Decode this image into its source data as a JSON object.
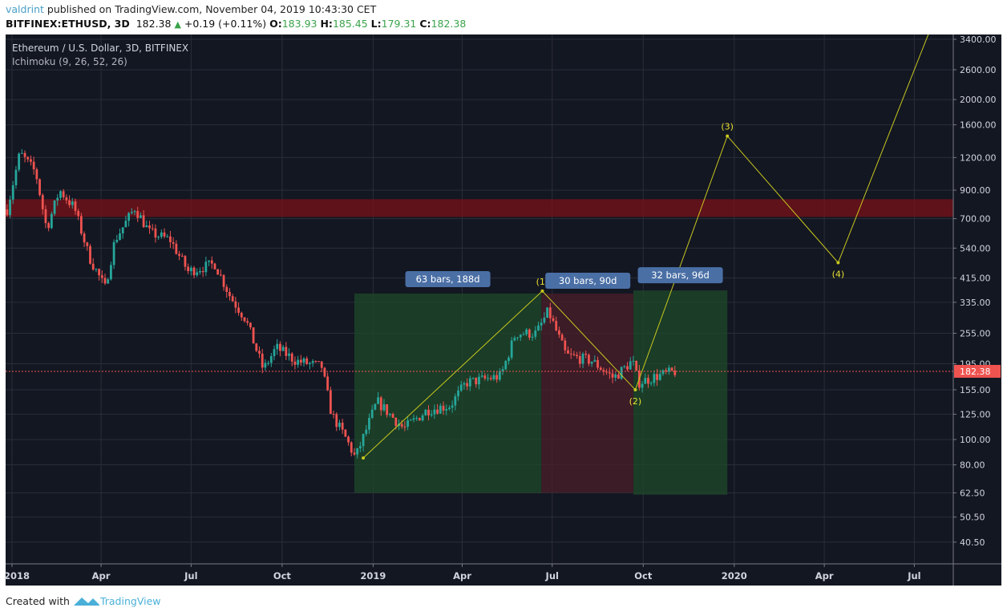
{
  "header": {
    "user": "valdrint",
    "published": "published on TradingView.com, November 04, 2019 10:43:30 CET",
    "symbol": "BITFINEX:ETHUSD, 3D",
    "last": "182.38",
    "change": "+0.19 (+0.11%)",
    "o_label": "O:",
    "o": "183.93",
    "h_label": "H:",
    "h": "185.45",
    "l_label": "L:",
    "l": "179.31",
    "c_label": "C:",
    "c": "182.38"
  },
  "footer": {
    "created": "Created with",
    "brand": "TradingView"
  },
  "colors": {
    "background": "#131722",
    "grid": "#2a2e39",
    "up": "#26a69a",
    "down": "#ef5350",
    "wave": "#c8c81e",
    "label_bg": "#4a6fa5",
    "last_price": "#ef5350"
  },
  "chart_data": {
    "type": "candlestick",
    "title": "Ethereum / U.S. Dollar, 3D, BITFINEX",
    "indicator": "Ichimoku (9, 26, 52, 26)",
    "y_scale": "log",
    "ylim": [
      38,
      3600
    ],
    "y_ticks": [
      "3400.00",
      "2600.00",
      "2000.00",
      "1600.00",
      "1200.00",
      "900.00",
      "700.00",
      "540.00",
      "415.00",
      "335.00",
      "255.00",
      "195.00",
      "155.00",
      "125.00",
      "100.00",
      "80.00",
      "62.50",
      "50.50",
      "40.50"
    ],
    "x_ticks": [
      {
        "label": "2018",
        "date": "2018-01-01"
      },
      {
        "label": "Apr",
        "date": "2018-04-01"
      },
      {
        "label": "Jul",
        "date": "2018-07-01"
      },
      {
        "label": "Oct",
        "date": "2018-10-01"
      },
      {
        "label": "2019",
        "date": "2019-01-01"
      },
      {
        "label": "Apr",
        "date": "2019-04-01"
      },
      {
        "label": "Jul",
        "date": "2019-07-01"
      },
      {
        "label": "Oct",
        "date": "2019-10-01"
      },
      {
        "label": "2020",
        "date": "2020-01-01"
      },
      {
        "label": "Apr",
        "date": "2020-04-01"
      },
      {
        "label": "Jul",
        "date": "2020-07-01"
      }
    ],
    "last_price": "182.38",
    "price_path_approx": [
      [
        "2017-12-27",
        760
      ],
      [
        "2018-01-09",
        1250
      ],
      [
        "2018-01-25",
        1050
      ],
      [
        "2018-02-05",
        640
      ],
      [
        "2018-02-18",
        900
      ],
      [
        "2018-03-05",
        770
      ],
      [
        "2018-03-20",
        500
      ],
      [
        "2018-04-05",
        380
      ],
      [
        "2018-04-15",
        580
      ],
      [
        "2018-05-05",
        770
      ],
      [
        "2018-05-20",
        620
      ],
      [
        "2018-06-10",
        580
      ],
      [
        "2018-06-28",
        440
      ],
      [
        "2018-07-25",
        470
      ],
      [
        "2018-08-10",
        350
      ],
      [
        "2018-08-25",
        290
      ],
      [
        "2018-09-12",
        185
      ],
      [
        "2018-09-25",
        225
      ],
      [
        "2018-10-15",
        200
      ],
      [
        "2018-11-10",
        190
      ],
      [
        "2018-11-20",
        125
      ],
      [
        "2018-12-05",
        100
      ],
      [
        "2018-12-14",
        85
      ],
      [
        "2019-01-05",
        140
      ],
      [
        "2019-02-01",
        110
      ],
      [
        "2019-02-25",
        130
      ],
      [
        "2019-03-20",
        135
      ],
      [
        "2019-04-05",
        165
      ],
      [
        "2019-05-10",
        175
      ],
      [
        "2019-05-25",
        255
      ],
      [
        "2019-06-15",
        255
      ],
      [
        "2019-06-27",
        310
      ],
      [
        "2019-07-15",
        210
      ],
      [
        "2019-08-10",
        200
      ],
      [
        "2019-09-01",
        172
      ],
      [
        "2019-09-20",
        200
      ],
      [
        "2019-09-26",
        165
      ],
      [
        "2019-10-15",
        175
      ],
      [
        "2019-11-03",
        182.38
      ]
    ],
    "resistance_zone": {
      "low": 711,
      "high": 831
    },
    "date_ranges": [
      {
        "label": "63 bars, 188d",
        "start": "2018-12-13",
        "end": "2019-06-20",
        "low": 62.5,
        "high": 362,
        "color": "green"
      },
      {
        "label": "30 bars, 90d",
        "start": "2019-06-20",
        "end": "2019-09-21",
        "low": 62.5,
        "high": 362,
        "color": "red"
      },
      {
        "label": "32 bars, 96d",
        "start": "2019-09-21",
        "end": "2019-12-25",
        "low": 61.5,
        "high": 372,
        "color": "green"
      }
    ],
    "wave_points": [
      {
        "label": "",
        "date": "2018-12-22",
        "price": 85
      },
      {
        "label": "(1)",
        "date": "2019-06-21",
        "price": 370
      },
      {
        "label": "(2)",
        "date": "2019-09-23",
        "price": 155
      },
      {
        "label": "(3)",
        "date": "2019-12-25",
        "price": 1450
      },
      {
        "label": "(4)",
        "date": "2020-04-15",
        "price": 475
      },
      {
        "label": "",
        "date": "2020-07-17",
        "price": 3700
      }
    ]
  }
}
